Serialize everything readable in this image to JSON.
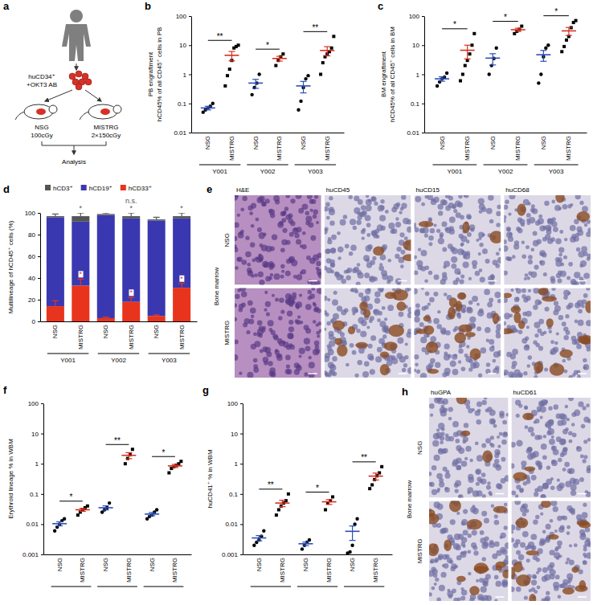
{
  "chart_data": [
    {
      "type": "diagram",
      "panel": "a",
      "cells": [
        "huCD34⁺",
        "+OKT3 AB"
      ],
      "mice": [
        {
          "name": "NSG",
          "dose": "100cGy"
        },
        {
          "name": "MISTRG",
          "dose": "2×150cGy"
        }
      ],
      "result": "Analysis"
    },
    {
      "type": "scatter",
      "panel": "b",
      "log": "y",
      "ylabel": [
        "PB engraftment",
        "hCD45% of all CD45⁺ cells in PB"
      ],
      "categories": [
        "NSG",
        "MISTRG",
        "NSG",
        "MISTRG",
        "NSG",
        "MISTRG"
      ],
      "groups": [
        "Y001",
        "Y002",
        "Y003"
      ],
      "significance": [
        "**",
        "*",
        "**"
      ],
      "ylim": [
        0.01,
        100
      ],
      "yticks": [
        0.01,
        0.1,
        1,
        10,
        100
      ],
      "series": [
        {
          "name": "NSG",
          "marker": "circle",
          "color": "#2b4fb5",
          "points": [
            [
              0.05,
              0.06,
              0.07,
              0.08,
              0.1
            ],
            null,
            [
              0.2,
              0.35,
              0.5,
              1.0
            ],
            null,
            [
              0.06,
              0.12,
              0.35,
              0.7,
              0.9
            ],
            null
          ],
          "values": [
            0.07,
            null,
            0.5,
            null,
            0.4,
            null
          ],
          "errors": [
            0.01,
            null,
            0.17,
            null,
            0.17,
            null
          ]
        },
        {
          "name": "MISTRG",
          "marker": "square",
          "color": "#d7301f",
          "points": [
            null,
            [
              0.4,
              0.9,
              1.5,
              3,
              8,
              9,
              10
            ],
            null,
            [
              2,
              3,
              4,
              5
            ],
            null,
            [
              1,
              2.5,
              4,
              5,
              6,
              8,
              20
            ]
          ],
          "values": [
            null,
            4.5,
            null,
            3.5,
            null,
            6.6
          ],
          "errors": [
            null,
            1.6,
            null,
            0.65,
            null,
            2.3
          ]
        }
      ]
    },
    {
      "type": "scatter",
      "panel": "c",
      "log": "y",
      "ylabel": [
        "BM engraftment",
        "hCD45% of all CD45⁺ cells in BM"
      ],
      "categories": [
        "NSG",
        "MISTRG",
        "NSG",
        "MISTRG",
        "NSG",
        "MISTRG"
      ],
      "groups": [
        "Y001",
        "Y002",
        "Y003"
      ],
      "significance": [
        "*",
        "*",
        "*"
      ],
      "ylim": [
        0.01,
        100
      ],
      "yticks": [
        0.01,
        0.1,
        1,
        10,
        100
      ],
      "series": [
        {
          "name": "NSG",
          "marker": "circle",
          "color": "#2b4fb5",
          "points": [
            [
              0.4,
              0.55,
              0.7,
              0.8,
              1.1
            ],
            null,
            [
              1,
              2,
              3.5,
              8
            ],
            null,
            [
              0.5,
              1,
              4,
              8,
              10
            ],
            null
          ],
          "values": [
            0.7,
            null,
            3.6,
            null,
            4.7,
            null
          ],
          "errors": [
            0.12,
            null,
            1.5,
            null,
            1.9,
            null
          ]
        },
        {
          "name": "MISTRG",
          "marker": "square",
          "color": "#d7301f",
          "points": [
            null,
            [
              0.6,
              1,
              2,
              3,
              5,
              10,
              25
            ],
            null,
            [
              25,
              30,
              35,
              45
            ],
            null,
            [
              6,
              9,
              15,
              20,
              40,
              60,
              70
            ]
          ],
          "values": [
            null,
            6.7,
            null,
            34,
            null,
            31
          ],
          "errors": [
            null,
            3.3,
            null,
            4.3,
            null,
            9.5
          ]
        }
      ]
    },
    {
      "type": "bar",
      "panel": "d",
      "stacked": true,
      "ylabel": "Multilineage of hCD45⁺ cells (%)",
      "categories": [
        "NSG",
        "MISTRG",
        "NSG",
        "MISTRG",
        "NSG",
        "MISTRG"
      ],
      "groups": [
        "Y001",
        "Y002",
        "Y003"
      ],
      "ylim": [
        0,
        100
      ],
      "yticks": [
        0,
        20,
        40,
        60,
        80,
        100
      ],
      "series": [
        {
          "name": "hCD3⁺",
          "color": "#555555",
          "values": [
            1,
            5,
            1,
            2,
            1,
            2
          ],
          "errors": [
            2,
            3,
            1,
            3,
            2,
            3
          ]
        },
        {
          "name": "hCD19⁺",
          "color": "#3a38b0",
          "values": [
            82,
            59,
            95,
            77,
            88,
            64
          ]
        },
        {
          "name": "hCD33⁺",
          "color": "#e8341c",
          "values": [
            14,
            33,
            3,
            18,
            5,
            31
          ],
          "errors": [
            5,
            6,
            1,
            4,
            1,
            4
          ]
        }
      ],
      "annotations": [
        {
          "category": 1,
          "series": 0,
          "text": "*"
        },
        {
          "category": 3,
          "series": 0,
          "text": "*"
        },
        {
          "category": 3,
          "series": 0,
          "text": "n.s."
        },
        {
          "category": 5,
          "series": 0,
          "text": "*"
        },
        {
          "category": 1,
          "series": 2,
          "text": "*"
        },
        {
          "category": 3,
          "series": 2,
          "text": "*"
        },
        {
          "category": 5,
          "series": 2,
          "text": "*"
        }
      ]
    },
    {
      "type": "image",
      "panel": "e",
      "side_label": "Bone marrow",
      "rows": [
        "NSG",
        "MISTRG"
      ],
      "columns": [
        "H&E",
        "huCD45",
        "huCD15",
        "huCD68"
      ]
    },
    {
      "type": "scatter",
      "panel": "f",
      "log": "y",
      "ylabel": "Erythroid lineage % in WBM",
      "categories": [
        "NSG",
        "MISTRG",
        "NSG",
        "MISTRG",
        "NSG",
        "MISTRG"
      ],
      "significance": [
        "*",
        "**",
        "*"
      ],
      "ylim": [
        0.001,
        100
      ],
      "yticks": [
        0.001,
        0.01,
        0.1,
        1,
        10,
        100
      ],
      "series": [
        {
          "name": "NSG",
          "marker": "circle",
          "color": "#2b4fb5",
          "points": [
            [
              0.006,
              0.008,
              0.01,
              0.013,
              0.015
            ],
            null,
            [
              0.025,
              0.03,
              0.035,
              0.05
            ],
            null,
            [
              0.015,
              0.018,
              0.02,
              0.025,
              0.03
            ],
            null
          ],
          "values": [
            0.0104,
            null,
            0.035,
            null,
            0.0216,
            null
          ],
          "errors": [
            0.0016,
            null,
            0.0054,
            null,
            0.0027,
            null
          ]
        },
        {
          "name": "MISTRG",
          "marker": "square",
          "color": "#d7301f",
          "points": [
            null,
            [
              0.02,
              0.025,
              0.03,
              0.035,
              0.04
            ],
            null,
            [
              1,
              1.5,
              2,
              3
            ],
            null,
            [
              0.5,
              0.7,
              0.8,
              0.9,
              1,
              1.2
            ]
          ],
          "values": [
            null,
            0.03,
            null,
            1.9,
            null,
            0.85
          ],
          "errors": [
            null,
            0.0035,
            null,
            0.43,
            null,
            0.1
          ]
        }
      ]
    },
    {
      "type": "scatter",
      "panel": "g",
      "log": "y",
      "ylabel": "huCD41⁺ % in WBM",
      "categories": [
        "NSG",
        "MISTRG",
        "NSG",
        "MISTRG",
        "NSG",
        "MISTRG"
      ],
      "significance": [
        "**",
        "*",
        "**"
      ],
      "ylim": [
        0.001,
        100
      ],
      "yticks": [
        0.001,
        0.01,
        0.1,
        1,
        10,
        100
      ],
      "series": [
        {
          "name": "NSG",
          "marker": "circle",
          "color": "#2b4fb5",
          "points": [
            [
              0.002,
              0.0025,
              0.003,
              0.004,
              0.006
            ],
            null,
            [
              0.0015,
              0.002,
              0.0025,
              0.003
            ],
            null,
            [
              0.0011,
              0.0012,
              0.002,
              0.01,
              0.015
            ],
            null
          ],
          "values": [
            0.0035,
            null,
            0.00225,
            null,
            0.0058,
            null
          ],
          "errors": [
            0.0007,
            null,
            0.0003,
            null,
            0.0029,
            null
          ]
        },
        {
          "name": "MISTRG",
          "marker": "square",
          "color": "#d7301f",
          "points": [
            null,
            [
              0.02,
              0.03,
              0.04,
              0.05,
              0.06,
              0.1
            ],
            null,
            [
              0.03,
              0.05,
              0.06,
              0.08
            ],
            null,
            [
              0.15,
              0.2,
              0.3,
              0.4,
              0.5,
              0.8
            ]
          ],
          "values": [
            null,
            0.05,
            null,
            0.055,
            null,
            0.39
          ],
          "errors": [
            null,
            0.012,
            null,
            0.01,
            null,
            0.1
          ]
        }
      ]
    },
    {
      "type": "image",
      "panel": "h",
      "side_label": "Bone marrow",
      "rows": [
        "NSG",
        "MISTRG"
      ],
      "columns": [
        "huGPA",
        "huCD61"
      ]
    }
  ]
}
